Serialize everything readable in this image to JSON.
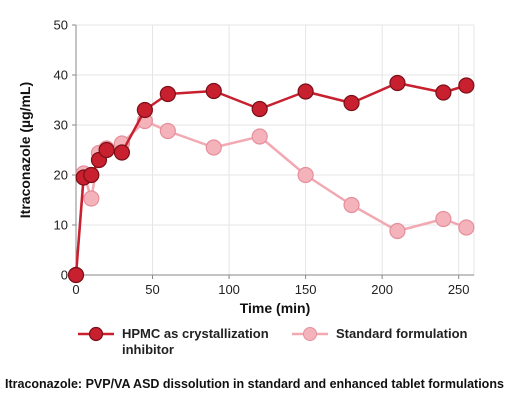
{
  "chart_data": {
    "type": "line",
    "xlabel": "Time (min)",
    "ylabel": "Itraconazole (µg/mL)",
    "xlim": [
      0,
      260
    ],
    "ylim": [
      0,
      50
    ],
    "xticks": [
      0,
      50,
      100,
      150,
      200,
      250
    ],
    "yticks": [
      0,
      10,
      20,
      30,
      40,
      50
    ],
    "grid": true,
    "legend_position": "bottom",
    "series": [
      {
        "name": "HPMC as crystallization inhibitor",
        "color": "#c8202f",
        "x": [
          0,
          5,
          10,
          15,
          20,
          30,
          45,
          60,
          90,
          120,
          150,
          180,
          210,
          240,
          255
        ],
        "y": [
          0,
          19.5,
          20,
          23,
          25,
          24.5,
          33,
          36.2,
          36.8,
          33.2,
          36.7,
          34.4,
          38.4,
          36.5,
          37.9
        ]
      },
      {
        "name": "Standard formulation",
        "color": "#f2a9b2",
        "x": [
          0,
          5,
          10,
          15,
          20,
          30,
          45,
          60,
          90,
          120,
          150,
          180,
          210,
          240,
          255
        ],
        "y": [
          0,
          20.3,
          15.3,
          24.4,
          25.3,
          26.3,
          30.8,
          28.8,
          25.5,
          27.7,
          20,
          14,
          8.8,
          11.2,
          9.5
        ]
      }
    ]
  },
  "legend": {
    "items": [
      {
        "label_line1": "HPMC as crystallization",
        "label_line2": "inhibitor"
      },
      {
        "label_line1": "Standard formulation",
        "label_line2": ""
      }
    ]
  },
  "caption": "Itraconazole: PVP/VA ASD dissolution in standard and enhanced tablet formulations"
}
